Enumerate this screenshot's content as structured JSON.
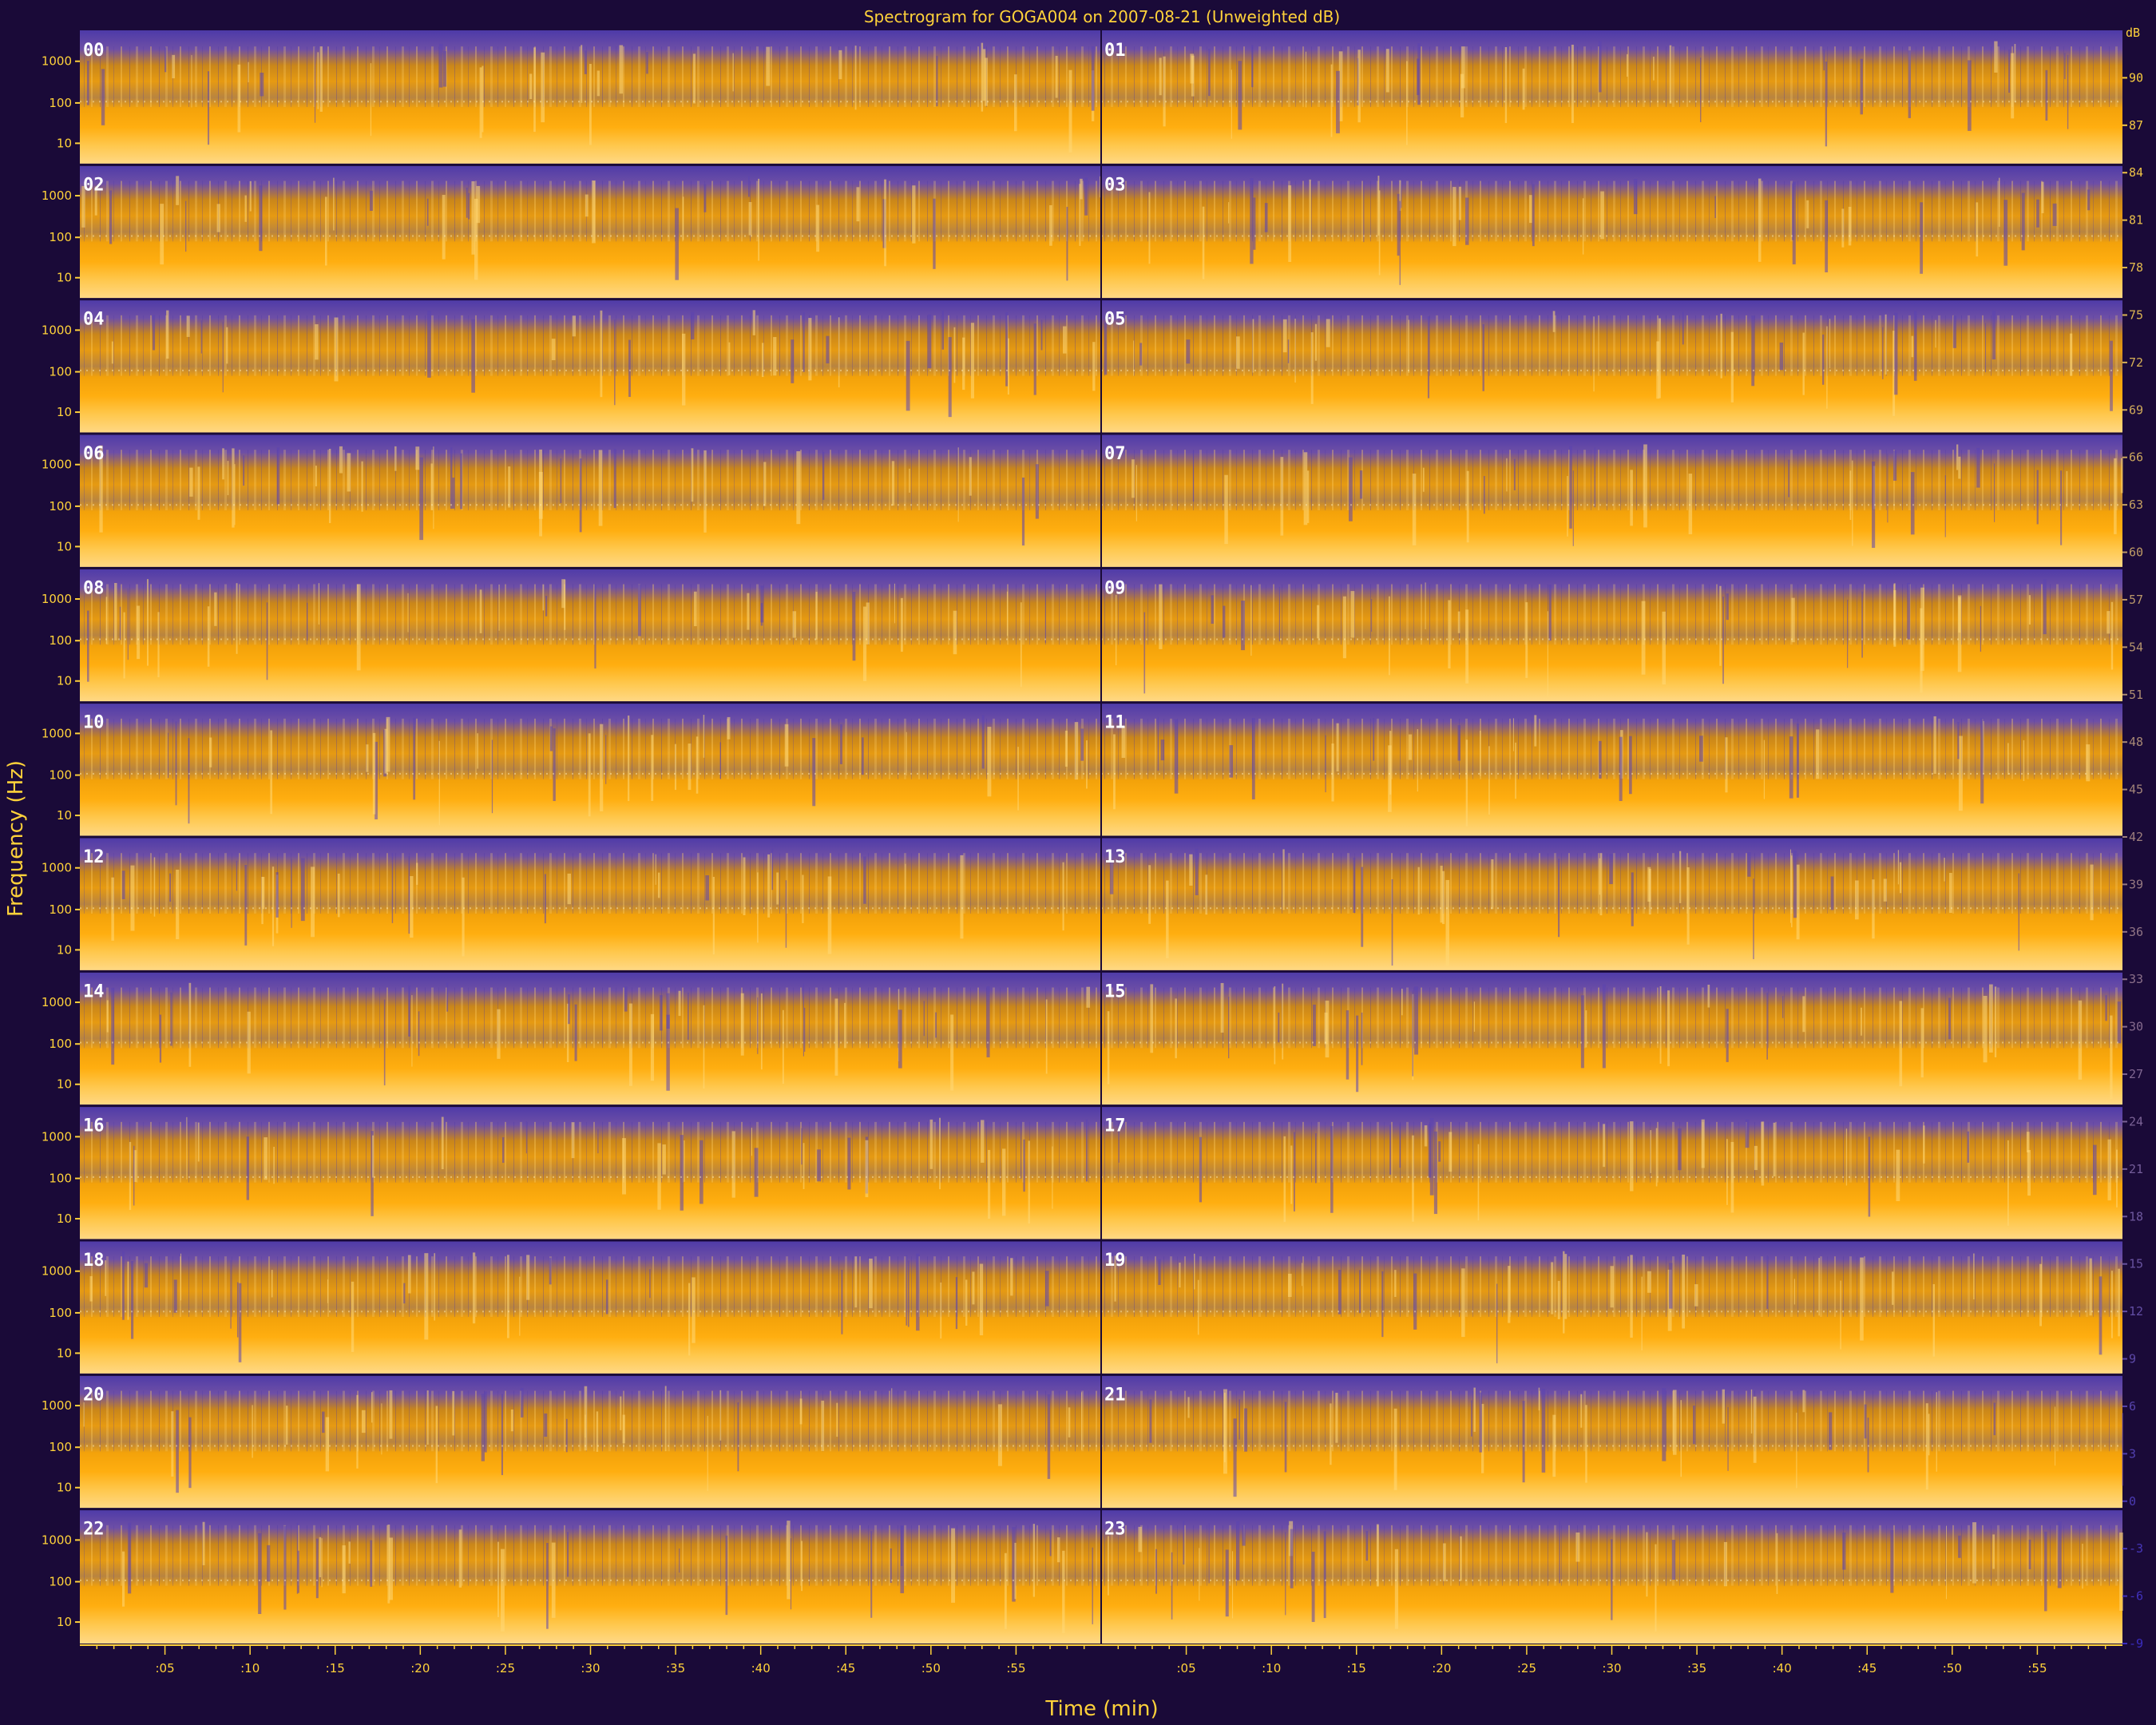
{
  "chart_data": {
    "type": "heatmap",
    "title": "Spectrogram for GOGA004 on 2007-08-21 (Unweighted dB)",
    "xlabel": "Time (min)",
    "ylabel": "Frequency (Hz)",
    "x_tick_labels": [
      ":05",
      ":10",
      ":15",
      ":20",
      ":25",
      ":30",
      ":35",
      ":40",
      ":45",
      ":50",
      ":55"
    ],
    "y_tick_labels": [
      "1000",
      "100",
      "10"
    ],
    "panels": [
      "00",
      "01",
      "02",
      "03",
      "04",
      "05",
      "06",
      "07",
      "08",
      "09",
      "10",
      "11",
      "12",
      "13",
      "14",
      "15",
      "16",
      "17",
      "18",
      "19",
      "20",
      "21",
      "22",
      "23"
    ],
    "panel_rows": 12,
    "panel_cols": 2,
    "minutes_per_panel": 60,
    "colorbar": {
      "unit": "dB",
      "ticks": [
        90,
        87,
        84,
        81,
        78,
        75,
        72,
        69,
        66,
        63,
        60,
        57,
        54,
        51,
        48,
        45,
        42,
        39,
        36,
        33,
        30,
        27,
        24,
        21,
        18,
        15,
        12,
        9,
        6,
        3,
        0,
        -3,
        -6,
        -9
      ],
      "range": [
        -9,
        93
      ],
      "low_color": "#3a2cc0",
      "high_color": "#ffd23a"
    },
    "colors": {
      "background": "#1a0a38",
      "spectrum_low": "#5a3fb0",
      "spectrum_mid": "#ff9d00",
      "spectrum_high": "#ffd76b",
      "text": "#ffd23a"
    }
  }
}
